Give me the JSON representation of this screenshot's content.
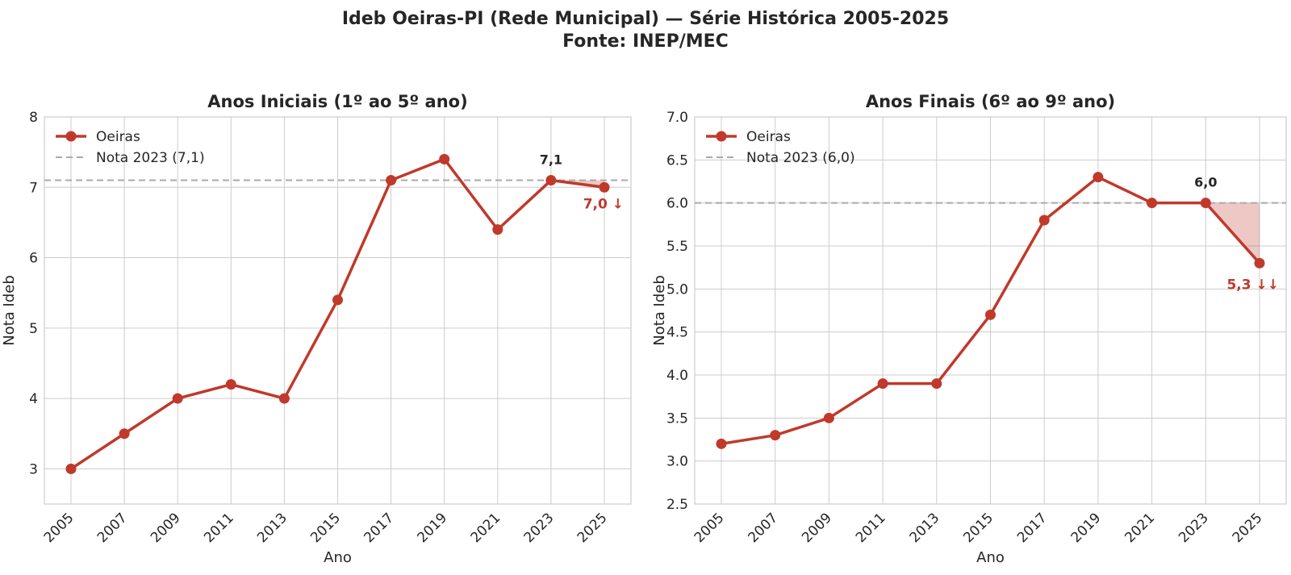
{
  "figure": {
    "title_line1": "Ideb Oeiras-PI (Rede Municipal) — Série Histórica 2005-2025",
    "title_line2": "Fonte: INEP/MEC"
  },
  "colors": {
    "series": "#c0392b",
    "reference": "#aaaaaa",
    "grid": "#cccccc",
    "frame": "#cccccc",
    "text": "#262626"
  },
  "chart_data": [
    {
      "type": "line",
      "title": "Anos Iniciais (1º ao 5º ano)",
      "xlabel": "Ano",
      "ylabel": "Nota Ideb",
      "x": [
        2005,
        2007,
        2009,
        2011,
        2013,
        2015,
        2017,
        2019,
        2021,
        2023,
        2025
      ],
      "series": [
        {
          "name": "Oeiras",
          "values": [
            3.0,
            3.5,
            4.0,
            4.2,
            4.0,
            5.4,
            7.1,
            7.4,
            6.4,
            7.1,
            7.0
          ]
        }
      ],
      "reference_line": {
        "name": "Nota 2023 (7,1)",
        "value": 7.1,
        "style": "dashed"
      },
      "ylim": [
        2.5,
        8.0
      ],
      "yticks": [
        3,
        4,
        5,
        6,
        7,
        8
      ],
      "ytick_labels": [
        "3",
        "4",
        "5",
        "6",
        "7",
        "8"
      ],
      "xticks": [
        2005,
        2007,
        2009,
        2011,
        2013,
        2015,
        2017,
        2019,
        2021,
        2023,
        2025
      ],
      "grid": true,
      "legend_position": "top-left",
      "annotations": [
        {
          "text": "7,1",
          "x": 2023,
          "y": 7.1,
          "kind": "reference-point"
        },
        {
          "text": "7,0 ↓",
          "x": 2025,
          "y": 7.0,
          "kind": "latest-drop"
        }
      ],
      "shaded_drop": {
        "from_x": 2023,
        "to_x": 2025
      }
    },
    {
      "type": "line",
      "title": "Anos Finais (6º ao 9º ano)",
      "xlabel": "Ano",
      "ylabel": "Nota Ideb",
      "x": [
        2005,
        2007,
        2009,
        2011,
        2013,
        2015,
        2017,
        2019,
        2021,
        2023,
        2025
      ],
      "series": [
        {
          "name": "Oeiras",
          "values": [
            3.2,
            3.3,
            3.5,
            3.9,
            3.9,
            4.7,
            5.8,
            6.3,
            6.0,
            6.0,
            5.3
          ]
        }
      ],
      "reference_line": {
        "name": "Nota 2023 (6,0)",
        "value": 6.0,
        "style": "dashed"
      },
      "ylim": [
        2.5,
        7.0
      ],
      "yticks": [
        2.5,
        3.0,
        3.5,
        4.0,
        4.5,
        5.0,
        5.5,
        6.0,
        6.5,
        7.0
      ],
      "ytick_labels": [
        "2.5",
        "3.0",
        "3.5",
        "4.0",
        "4.5",
        "5.0",
        "5.5",
        "6.0",
        "6.5",
        "7.0"
      ],
      "xticks": [
        2005,
        2007,
        2009,
        2011,
        2013,
        2015,
        2017,
        2019,
        2021,
        2023,
        2025
      ],
      "grid": true,
      "legend_position": "top-left",
      "annotations": [
        {
          "text": "6,0",
          "x": 2023,
          "y": 6.0,
          "kind": "reference-point"
        },
        {
          "text": "5,3 ↓↓",
          "x": 2025,
          "y": 5.3,
          "kind": "latest-drop"
        }
      ],
      "shaded_drop": {
        "from_x": 2023,
        "to_x": 2025
      }
    }
  ]
}
